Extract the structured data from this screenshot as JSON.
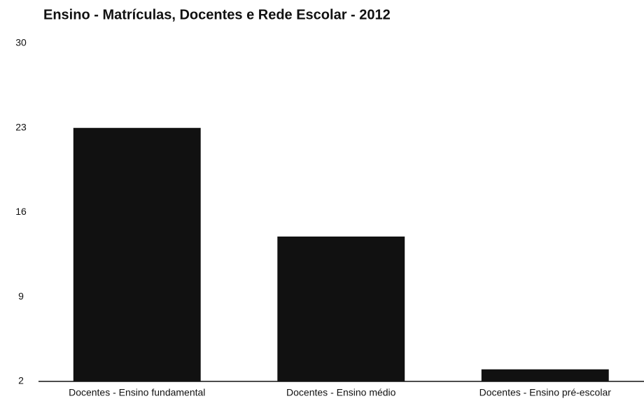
{
  "chart_data": {
    "type": "bar",
    "title": "Ensino - Matrículas, Docentes e Rede Escolar - 2012",
    "categories": [
      "Docentes - Ensino fundamental",
      "Docentes - Ensino médio",
      "Docentes - Ensino pré-escolar"
    ],
    "values": [
      23,
      14,
      3
    ],
    "color": "#111111",
    "ylim": [
      2,
      30
    ],
    "yticks": [
      2,
      9,
      16,
      23,
      30
    ],
    "grid": false
  }
}
